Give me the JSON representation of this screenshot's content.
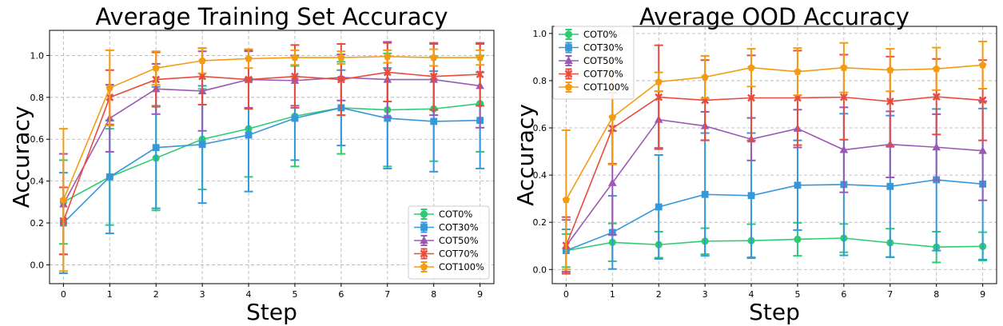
{
  "chart_data": [
    {
      "type": "line",
      "title": "Average Training Set Accuracy",
      "xlabel": "Step",
      "ylabel": "Accuracy",
      "x": [
        0,
        1,
        2,
        3,
        4,
        5,
        6,
        7,
        8,
        9
      ],
      "xlim": [
        -0.3,
        9.3
      ],
      "ylim": [
        -0.09,
        1.12
      ],
      "xticks": [
        "0",
        "1",
        "2",
        "3",
        "4",
        "5",
        "6",
        "7",
        "8",
        "9"
      ],
      "yticks": [
        0.0,
        0.2,
        0.4,
        0.6,
        0.8,
        1.0
      ],
      "ytick_labels": [
        "0.0",
        "0.2",
        "0.4",
        "0.6",
        "0.8",
        "1.0"
      ],
      "grid": true,
      "legend_position": "lower-right",
      "series": [
        {
          "name": "COT0%",
          "color": "#2ecc71",
          "marker": "circle",
          "values": [
            0.3,
            0.42,
            0.51,
            0.6,
            0.65,
            0.71,
            0.75,
            0.74,
            0.745,
            0.77
          ],
          "errors": [
            0.2,
            0.23,
            0.25,
            0.24,
            0.23,
            0.24,
            0.22,
            0.27,
            0.25,
            0.23
          ]
        },
        {
          "name": "COT30%",
          "color": "#3498db",
          "marker": "square",
          "values": [
            0.2,
            0.42,
            0.56,
            0.575,
            0.62,
            0.7,
            0.75,
            0.7,
            0.685,
            0.69
          ],
          "errors": [
            0.24,
            0.27,
            0.29,
            0.28,
            0.27,
            0.2,
            0.18,
            0.24,
            0.24,
            0.23
          ]
        },
        {
          "name": "COT50%",
          "color": "#9b59b6",
          "marker": "triangle",
          "values": [
            0.29,
            0.7,
            0.84,
            0.83,
            0.885,
            0.88,
            0.895,
            0.885,
            0.885,
            0.855
          ],
          "errors": [
            0.24,
            0.16,
            0.12,
            0.19,
            0.135,
            0.12,
            0.11,
            0.18,
            0.17,
            0.2
          ]
        },
        {
          "name": "COT70%",
          "color": "#e74c3c",
          "marker": "x",
          "values": [
            0.21,
            0.8,
            0.885,
            0.9,
            0.885,
            0.9,
            0.885,
            0.92,
            0.9,
            0.91
          ],
          "errors": [
            0.16,
            0.13,
            0.13,
            0.135,
            0.14,
            0.15,
            0.17,
            0.14,
            0.16,
            0.15
          ]
        },
        {
          "name": "COT100%",
          "color": "#f39c12",
          "marker": "pentagon",
          "values": [
            0.31,
            0.845,
            0.94,
            0.975,
            0.985,
            0.99,
            0.99,
            0.995,
            0.99,
            0.99
          ],
          "errors": [
            0.34,
            0.18,
            0.08,
            0.06,
            0.045,
            0.035,
            0.03,
            0.03,
            0.04,
            0.035
          ]
        }
      ]
    },
    {
      "type": "line",
      "title": "Average OOD Accuracy",
      "xlabel": "Step",
      "ylabel": "Accuracy",
      "x": [
        0,
        1,
        2,
        3,
        4,
        5,
        6,
        7,
        8,
        9
      ],
      "xlim": [
        -0.3,
        9.3
      ],
      "ylim": [
        -0.06,
        1.03
      ],
      "xticks": [
        "0",
        "1",
        "2",
        "3",
        "4",
        "5",
        "6",
        "7",
        "8",
        "9"
      ],
      "yticks": [
        0.0,
        0.2,
        0.4,
        0.6,
        0.8,
        1.0
      ],
      "ytick_labels": [
        "0.0",
        "0.2",
        "0.4",
        "0.6",
        "0.8",
        "1.0"
      ],
      "grid": true,
      "legend_position": "upper-left",
      "series": [
        {
          "name": "COT0%",
          "color": "#2ecc71",
          "marker": "circle",
          "values": [
            0.08,
            0.115,
            0.105,
            0.12,
            0.122,
            0.128,
            0.133,
            0.113,
            0.095,
            0.098
          ],
          "errors": [
            0.07,
            0.08,
            0.055,
            0.055,
            0.07,
            0.07,
            0.06,
            0.06,
            0.065,
            0.06
          ]
        },
        {
          "name": "COT30%",
          "color": "#3498db",
          "marker": "square",
          "values": [
            0.08,
            0.157,
            0.265,
            0.318,
            0.313,
            0.357,
            0.36,
            0.352,
            0.38,
            0.362
          ],
          "errors": [
            0.09,
            0.155,
            0.22,
            0.26,
            0.265,
            0.19,
            0.3,
            0.3,
            0.3,
            0.32
          ]
        },
        {
          "name": "COT50%",
          "color": "#9b59b6",
          "marker": "triangle",
          "values": [
            0.1,
            0.367,
            0.635,
            0.608,
            0.552,
            0.597,
            0.507,
            0.53,
            0.518,
            0.503
          ],
          "errors": [
            0.11,
            0.22,
            0.12,
            0.06,
            0.09,
            0.08,
            0.18,
            0.14,
            0.14,
            0.21
          ]
        },
        {
          "name": "COT70%",
          "color": "#e74c3c",
          "marker": "x",
          "values": [
            0.102,
            0.598,
            0.73,
            0.717,
            0.727,
            0.727,
            0.73,
            0.712,
            0.732,
            0.717
          ],
          "errors": [
            0.12,
            0.15,
            0.22,
            0.17,
            0.18,
            0.2,
            0.18,
            0.19,
            0.16,
            0.17
          ]
        },
        {
          "name": "COT100%",
          "color": "#f39c12",
          "marker": "pentagon",
          "values": [
            0.295,
            0.645,
            0.795,
            0.815,
            0.855,
            0.838,
            0.855,
            0.845,
            0.85,
            0.866
          ],
          "errors": [
            0.295,
            0.2,
            0.04,
            0.09,
            0.08,
            0.1,
            0.105,
            0.09,
            0.09,
            0.1
          ]
        }
      ]
    }
  ]
}
